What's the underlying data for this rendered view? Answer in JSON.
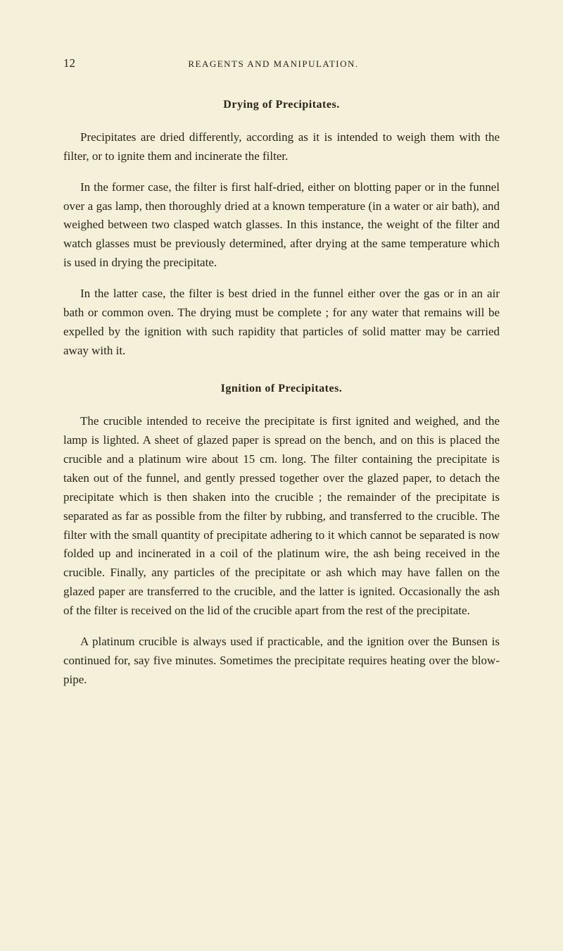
{
  "page": {
    "number": "12",
    "running_header": "REAGENTS AND MANIPULATION.",
    "background_color": "#f5f0d9",
    "text_color": "#2a2318",
    "body_fontsize": 17,
    "header_fontsize": 13,
    "heading_fontsize": 16,
    "line_height": 1.58
  },
  "section1": {
    "heading": "Drying of Precipitates.",
    "para1": "Precipitates are dried differently, according as it is intended to weigh them with the filter, or to ignite them and incinerate the filter.",
    "para2": "In the former case, the filter is first half-dried, either on blotting paper or in the funnel over a gas lamp, then thoroughly dried at a known temperature (in a water or air bath), and weighed between two clasped watch glasses. In this instance, the weight of the filter and watch glasses must be previously determined, after drying at the same temperature which is used in drying the precipitate.",
    "para3": "In the latter case, the filter is best dried in the funnel either over the gas or in an air bath or common oven. The drying must be complete ; for any water that remains will be expelled by the ignition with such rapidity that particles of solid matter may be carried away with it."
  },
  "section2": {
    "heading": "Ignition of Precipitates.",
    "para1": "The crucible intended to receive the precipitate is first ignited and weighed, and the lamp is lighted. A sheet of glazed paper is spread on the bench, and on this is placed the crucible and a platinum wire about 15 cm. long. The filter containing the precipitate is taken out of the funnel, and gently pressed together over the glazed paper, to detach the precipitate which is then shaken into the crucible ; the remainder of the precipitate is separated as far as possible from the filter by rubbing, and transferred to the crucible. The filter with the small quantity of precipitate adhering to it which cannot be separated is now folded up and incinerated in a coil of the platinum wire, the ash being received in the crucible. Finally, any particles of the precipitate or ash which may have fallen on the glazed paper are transferred to the crucible, and the latter is ignited. Occasionally the ash of the filter is received on the lid of the crucible apart from the rest of the precipitate.",
    "para2": "A platinum crucible is always used if practicable, and the ignition over the Bunsen is continued for, say five minutes. Sometimes the precipitate requires heating over the blow-pipe."
  }
}
